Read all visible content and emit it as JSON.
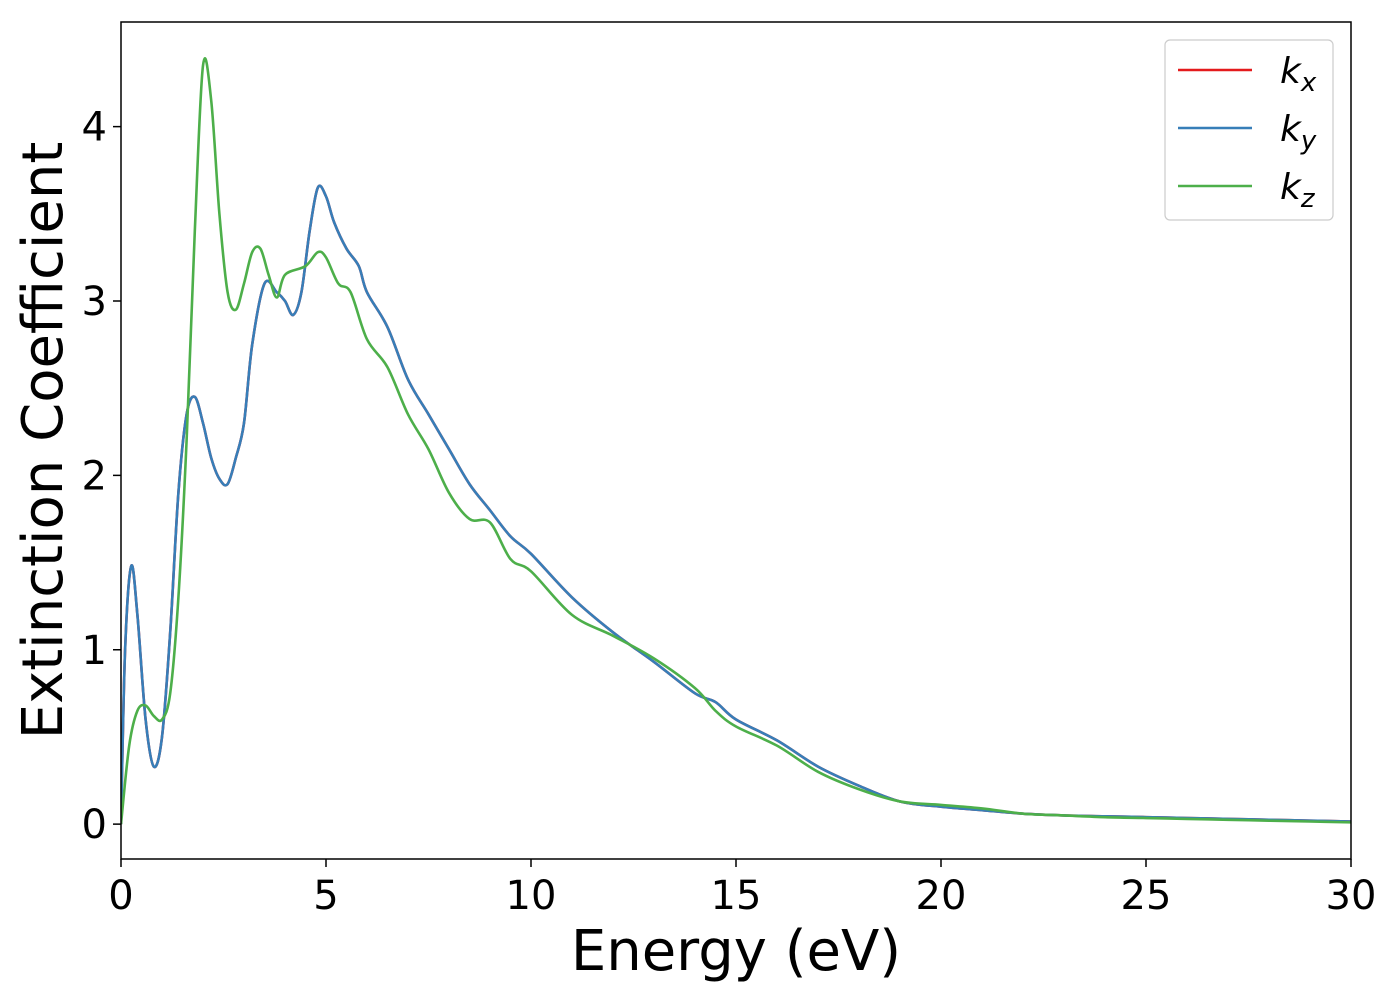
{
  "chart_data": {
    "type": "line",
    "xlabel": "Energy (eV)",
    "ylabel": "Extinction Coefficient",
    "xlim": [
      0,
      30
    ],
    "ylim": [
      -0.2,
      4.6
    ],
    "xticks": [
      0,
      5,
      10,
      15,
      20,
      25,
      30
    ],
    "yticks": [
      0,
      1,
      2,
      3,
      4
    ],
    "grid": false,
    "legend_position": "top-right",
    "series": [
      {
        "name": "k_x",
        "legend_base": "k",
        "legend_sub": "x",
        "color": "#e41a1c",
        "x": [
          0,
          0.1,
          0.25,
          0.4,
          0.6,
          0.8,
          1.0,
          1.2,
          1.4,
          1.6,
          1.8,
          2.0,
          2.2,
          2.4,
          2.6,
          2.8,
          3.0,
          3.2,
          3.5,
          3.8,
          4.0,
          4.2,
          4.4,
          4.6,
          4.8,
          5.0,
          5.2,
          5.5,
          5.8,
          6.0,
          6.5,
          7.0,
          7.5,
          8.0,
          8.5,
          9.0,
          9.5,
          10,
          11,
          12,
          13,
          14,
          14.5,
          15,
          16,
          17,
          18,
          19,
          20,
          21,
          22,
          23,
          24,
          25,
          26,
          27,
          28,
          29,
          30
        ],
        "y": [
          0,
          1.0,
          1.48,
          1.2,
          0.6,
          0.33,
          0.5,
          1.1,
          1.9,
          2.35,
          2.45,
          2.3,
          2.1,
          1.98,
          1.95,
          2.1,
          2.3,
          2.75,
          3.1,
          3.05,
          3.0,
          2.92,
          3.05,
          3.4,
          3.65,
          3.6,
          3.45,
          3.3,
          3.2,
          3.05,
          2.85,
          2.55,
          2.35,
          2.15,
          1.95,
          1.8,
          1.65,
          1.55,
          1.3,
          1.1,
          0.93,
          0.75,
          0.7,
          0.6,
          0.48,
          0.33,
          0.22,
          0.13,
          0.1,
          0.08,
          0.06,
          0.05,
          0.045,
          0.04,
          0.035,
          0.03,
          0.025,
          0.02,
          0.015
        ]
      },
      {
        "name": "k_y",
        "legend_base": "k",
        "legend_sub": "y",
        "color": "#377eb8",
        "x": [
          0,
          0.1,
          0.25,
          0.4,
          0.6,
          0.8,
          1.0,
          1.2,
          1.4,
          1.6,
          1.8,
          2.0,
          2.2,
          2.4,
          2.6,
          2.8,
          3.0,
          3.2,
          3.5,
          3.8,
          4.0,
          4.2,
          4.4,
          4.6,
          4.8,
          5.0,
          5.2,
          5.5,
          5.8,
          6.0,
          6.5,
          7.0,
          7.5,
          8.0,
          8.5,
          9.0,
          9.5,
          10,
          11,
          12,
          13,
          14,
          14.5,
          15,
          16,
          17,
          18,
          19,
          20,
          21,
          22,
          23,
          24,
          25,
          26,
          27,
          28,
          29,
          30
        ],
        "y": [
          0,
          1.0,
          1.48,
          1.2,
          0.6,
          0.33,
          0.5,
          1.1,
          1.9,
          2.35,
          2.45,
          2.3,
          2.1,
          1.98,
          1.95,
          2.1,
          2.3,
          2.75,
          3.1,
          3.05,
          3.0,
          2.92,
          3.05,
          3.4,
          3.65,
          3.6,
          3.45,
          3.3,
          3.2,
          3.05,
          2.85,
          2.55,
          2.35,
          2.15,
          1.95,
          1.8,
          1.65,
          1.55,
          1.3,
          1.1,
          0.93,
          0.75,
          0.7,
          0.6,
          0.48,
          0.33,
          0.22,
          0.13,
          0.1,
          0.08,
          0.06,
          0.05,
          0.045,
          0.04,
          0.035,
          0.03,
          0.025,
          0.02,
          0.015
        ]
      },
      {
        "name": "k_z",
        "legend_base": "k",
        "legend_sub": "z",
        "color": "#4daf4a",
        "x": [
          0,
          0.2,
          0.4,
          0.6,
          0.8,
          1.0,
          1.2,
          1.4,
          1.6,
          1.8,
          2.0,
          2.2,
          2.4,
          2.6,
          2.8,
          3.0,
          3.2,
          3.4,
          3.6,
          3.8,
          4.0,
          4.5,
          4.8,
          5.0,
          5.3,
          5.6,
          6.0,
          6.5,
          7.0,
          7.5,
          8.0,
          8.5,
          9.0,
          9.5,
          10,
          11,
          12,
          13,
          14,
          14.5,
          15,
          16,
          17,
          18,
          19,
          20,
          21,
          22,
          23,
          24,
          25,
          26,
          27,
          28,
          29,
          30
        ],
        "y": [
          0,
          0.45,
          0.65,
          0.68,
          0.62,
          0.6,
          0.75,
          1.3,
          2.2,
          3.4,
          4.35,
          4.15,
          3.5,
          3.05,
          2.95,
          3.1,
          3.28,
          3.3,
          3.15,
          3.02,
          3.15,
          3.2,
          3.28,
          3.25,
          3.1,
          3.05,
          2.78,
          2.62,
          2.35,
          2.15,
          1.9,
          1.75,
          1.73,
          1.52,
          1.45,
          1.2,
          1.08,
          0.95,
          0.78,
          0.65,
          0.56,
          0.45,
          0.3,
          0.2,
          0.13,
          0.11,
          0.09,
          0.06,
          0.05,
          0.04,
          0.035,
          0.03,
          0.025,
          0.02,
          0.015,
          0.01
        ]
      }
    ]
  }
}
